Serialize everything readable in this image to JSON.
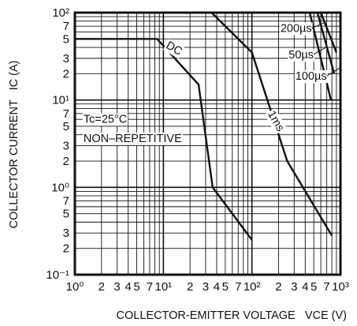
{
  "chart_data": {
    "type": "line",
    "xscale": "log",
    "yscale": "log",
    "xlim": [
      1,
      1000
    ],
    "ylim": [
      0.1,
      100
    ],
    "grid": true,
    "xlabel": "COLLECTOR-EMITTER VOLTAGE   VCE (V)",
    "ylabel": "COLLECTOR CURRENT   IC (A)",
    "x_tick_labels": [
      "10⁰",
      "2",
      "3",
      "4",
      "5",
      "7",
      "10¹",
      "2",
      "3",
      "4",
      "5",
      "7",
      "10²",
      "2",
      "3",
      "4",
      "5",
      "7",
      "10³"
    ],
    "y_tick_labels": [
      "10²",
      "7",
      "5",
      "3",
      "2",
      "10¹",
      "7",
      "5",
      "3",
      "2",
      "10⁰",
      "7",
      "5",
      "3",
      "2",
      "10⁻¹"
    ],
    "series": [
      {
        "name": "DC",
        "x": [
          1,
          8.5,
          25,
          36,
          100
        ],
        "y": [
          50,
          50,
          15,
          1,
          0.25
        ]
      },
      {
        "name": "1ms",
        "x": [
          26,
          35,
          100,
          250,
          800
        ],
        "y": [
          100,
          100,
          35,
          2,
          0.28
        ]
      },
      {
        "name": "200µs",
        "x": [
          450,
          780
        ],
        "y": [
          100,
          10
        ]
      },
      {
        "name": "50µs",
        "x": [
          550,
          850
        ],
        "y": [
          100,
          20
        ]
      },
      {
        "name": "100µs",
        "x": [
          600,
          900
        ],
        "y": [
          100,
          35
        ]
      }
    ],
    "annotations": [
      {
        "text": "DC",
        "x": 10.5,
        "y": 40,
        "rotate": 30
      },
      {
        "text": "1ms",
        "x": 150,
        "y": 7,
        "rotate": 60
      },
      {
        "text": "200µs",
        "x": 210,
        "y": 60
      },
      {
        "text": "50µs",
        "x": 260,
        "y": 30
      },
      {
        "text": "100µs",
        "x": 310,
        "y": 17
      },
      {
        "text": "Tc=25°C",
        "x": 1.25,
        "y": 5.5
      },
      {
        "text": "NON–REPETITIVE",
        "x": 1.25,
        "y": 3.3
      }
    ]
  }
}
